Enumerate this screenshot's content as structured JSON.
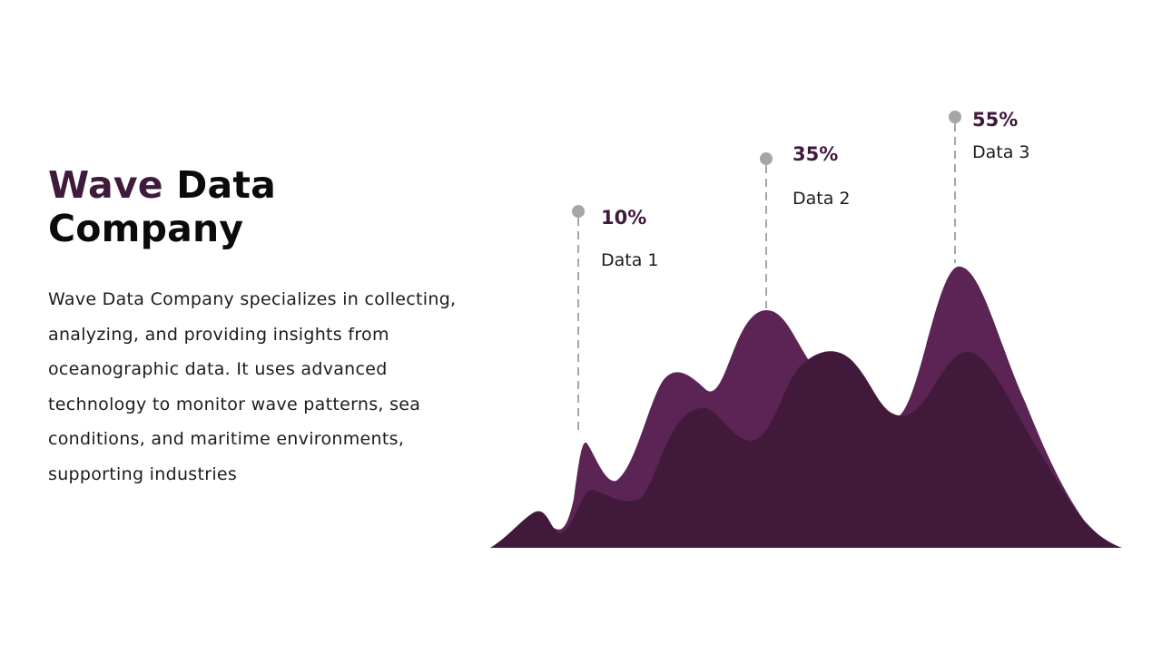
{
  "title": {
    "accent": "Wave",
    "line1_rest": " Data",
    "line2": "Company"
  },
  "description": "Wave Data Company specializes in collecting, analyzing, and providing insights from oceanographic data. It uses advanced technology to monitor wave patterns, sea conditions, and maritime environments, supporting industries",
  "colors": {
    "back_wave": "#5c2454",
    "front_wave": "#411a3b",
    "accent_text": "#3f1a3c",
    "marker": "#a6a6a6"
  },
  "chart_data": {
    "type": "area",
    "title": "",
    "xlabel": "",
    "ylabel": "",
    "annotations": [
      {
        "value": "10%",
        "label": "Data 1"
      },
      {
        "value": "35%",
        "label": "Data 2"
      },
      {
        "value": "55%",
        "label": "Data 3"
      }
    ]
  }
}
